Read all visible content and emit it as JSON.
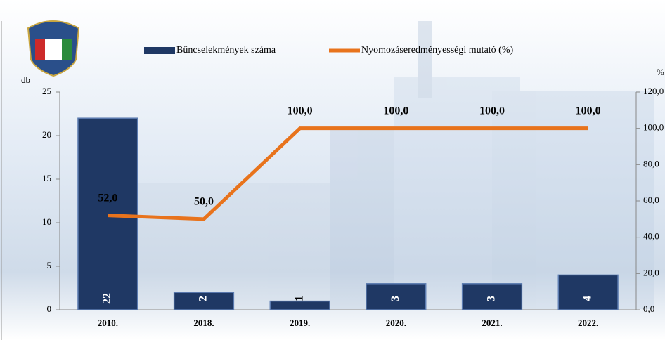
{
  "chart_data": {
    "type": "bar",
    "categories": [
      "2010.",
      "2018.",
      "2019.",
      "2020.",
      "2021.",
      "2022."
    ],
    "series": [
      {
        "name": "Bűncselekmények száma",
        "type": "bar",
        "color": "#1f3864",
        "values": [
          22,
          2,
          1,
          3,
          3,
          4
        ]
      },
      {
        "name": "Nyomozáseredményességi mutató (%)",
        "type": "line",
        "axis": "y2",
        "color": "#e8731c",
        "values": [
          52,
          50,
          100,
          100,
          100,
          100
        ],
        "value_labels": [
          "52,0",
          "50,0",
          "100,0",
          "100,0",
          "100,0",
          "100,0"
        ]
      }
    ],
    "ylabel": "db",
    "y2label": "%",
    "ylim": [
      0,
      25
    ],
    "yticks": [
      0,
      5,
      10,
      15,
      20,
      25
    ],
    "y2lim": [
      0,
      120
    ],
    "y2ticks": [
      {
        "value": 0,
        "label": "0,0"
      },
      {
        "value": 20,
        "label": "20,0"
      },
      {
        "value": 40,
        "label": "40,0"
      },
      {
        "value": 60,
        "label": "60,0"
      },
      {
        "value": 80,
        "label": "80,0"
      },
      {
        "value": 100,
        "label": "100,0"
      },
      {
        "value": 120,
        "label": "120,0"
      }
    ],
    "legend": "top"
  }
}
